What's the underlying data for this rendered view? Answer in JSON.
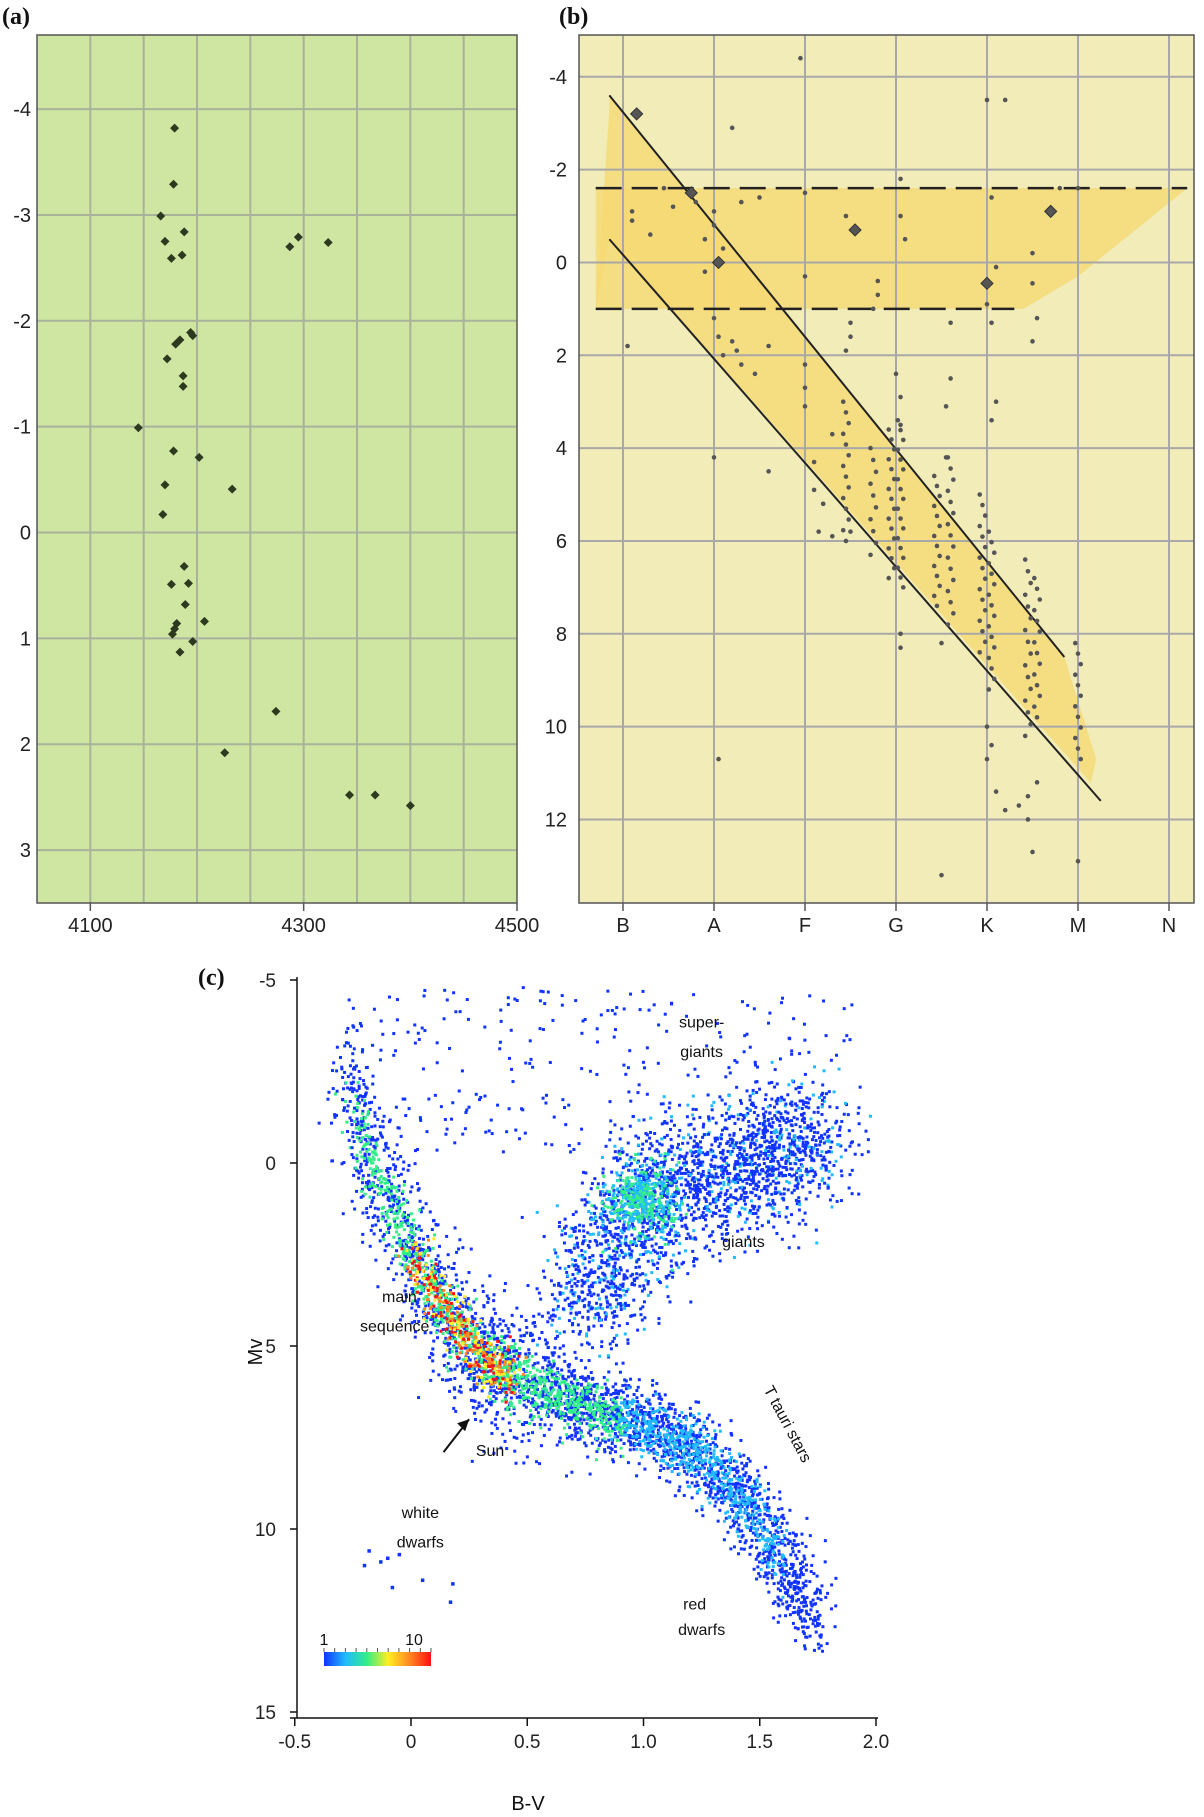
{
  "chart_data": [
    {
      "panel_label": "(a)",
      "type": "scatter",
      "xlim": [
        4050,
        4500
      ],
      "ylim": [
        -4.7,
        3.5
      ],
      "y_inverted": true,
      "grid": true,
      "background": "#cfe6a3",
      "grid_color": "#a9b29a",
      "point_color": "#2e3a1f",
      "xticks": [
        "4100",
        "4300",
        "4500"
      ],
      "xtick_values": [
        4100,
        4300,
        4500
      ],
      "yticks": [
        "-4",
        "-3",
        "-2",
        "-1",
        "0",
        "1",
        "2",
        "3"
      ],
      "ytick_values": [
        -4,
        -3,
        -2,
        -1,
        0,
        1,
        2,
        3
      ],
      "points": [
        [
          4179,
          -3.82
        ],
        [
          4178,
          -3.29
        ],
        [
          4166,
          -2.99
        ],
        [
          4170,
          -2.75
        ],
        [
          4176,
          -2.59
        ],
        [
          4186,
          -2.62
        ],
        [
          4188,
          -2.84
        ],
        [
          4287,
          -2.7
        ],
        [
          4295,
          -2.79
        ],
        [
          4323,
          -2.74
        ],
        [
          4194,
          -1.89
        ],
        [
          4196,
          -1.86
        ],
        [
          4184,
          -1.82
        ],
        [
          4180,
          -1.78
        ],
        [
          4172,
          -1.64
        ],
        [
          4187,
          -1.48
        ],
        [
          4187,
          -1.38
        ],
        [
          4145,
          -0.99
        ],
        [
          4178,
          -0.77
        ],
        [
          4202,
          -0.71
        ],
        [
          4170,
          -0.45
        ],
        [
          4233,
          -0.41
        ],
        [
          4168,
          -0.17
        ],
        [
          4188,
          0.32
        ],
        [
          4176,
          0.49
        ],
        [
          4192,
          0.48
        ],
        [
          4189,
          0.68
        ],
        [
          4207,
          0.84
        ],
        [
          4181,
          0.86
        ],
        [
          4179,
          0.91
        ],
        [
          4177,
          0.96
        ],
        [
          4196,
          1.03
        ],
        [
          4184,
          1.13
        ],
        [
          4274,
          1.69
        ],
        [
          4226,
          2.08
        ],
        [
          4343,
          2.48
        ],
        [
          4367,
          2.48
        ],
        [
          4400,
          2.58
        ]
      ]
    },
    {
      "panel_label": "(b)",
      "type": "scatter",
      "ylim": [
        -4.9,
        13.8
      ],
      "y_inverted": true,
      "grid": true,
      "background": "#f2ecb8",
      "band_color": "#f6d870",
      "grid_color": "#a8a8a8",
      "point_color": "#555555",
      "xticks": [
        "B",
        "A",
        "F",
        "G",
        "K",
        "M",
        "N"
      ],
      "yticks": [
        "-4",
        "-2",
        "0",
        "2",
        "4",
        "6",
        "8",
        "10",
        "12"
      ],
      "ytick_values": [
        -4,
        -2,
        0,
        2,
        4,
        6,
        8,
        10,
        12
      ],
      "x_range_index": [
        -0.35,
        6.35
      ],
      "giant_band_mag": [
        -1.6,
        1.0
      ],
      "main_sequence_lines": [
        {
          "x": [
            -0.15,
            4.85
          ],
          "y": [
            -3.6,
            8.5
          ]
        },
        {
          "x": [
            -0.15,
            5.25
          ],
          "y": [
            -0.5,
            11.6
          ]
        }
      ],
      "large_points": [
        [
          0.15,
          -3.2
        ],
        [
          0.75,
          -1.5
        ],
        [
          1.05,
          0.0
        ],
        [
          2.55,
          -0.7
        ],
        [
          4.0,
          0.45
        ],
        [
          4.7,
          -1.1
        ]
      ],
      "points": [
        [
          0.05,
          1.8
        ],
        [
          0.1,
          -0.9
        ],
        [
          0.1,
          -1.1
        ],
        [
          0.3,
          -0.6
        ],
        [
          0.45,
          -1.6
        ],
        [
          0.55,
          -1.2
        ],
        [
          0.8,
          -1.3
        ],
        [
          0.9,
          -0.5
        ],
        [
          0.9,
          0.2
        ],
        [
          1.0,
          -0.8
        ],
        [
          1.0,
          -1.1
        ],
        [
          1.1,
          -0.3
        ],
        [
          1.2,
          -2.9
        ],
        [
          1.3,
          -1.3
        ],
        [
          1.5,
          -1.4
        ],
        [
          1.0,
          1.2
        ],
        [
          1.05,
          1.6
        ],
        [
          1.1,
          2.0
        ],
        [
          1.2,
          1.7
        ],
        [
          1.3,
          2.2
        ],
        [
          1.25,
          1.9
        ],
        [
          1.45,
          2.4
        ],
        [
          1.6,
          1.8
        ],
        [
          1.0,
          4.2
        ],
        [
          1.05,
          10.7
        ],
        [
          1.6,
          4.5
        ],
        [
          1.95,
          -4.4
        ],
        [
          2.0,
          -1.5
        ],
        [
          2.0,
          0.3
        ],
        [
          2.0,
          2.2
        ],
        [
          2.0,
          2.7
        ],
        [
          2.0,
          3.1
        ],
        [
          2.1,
          4.3
        ],
        [
          2.2,
          5.2
        ],
        [
          2.15,
          5.8
        ],
        [
          2.3,
          3.7
        ],
        [
          2.5,
          1.3
        ],
        [
          2.5,
          1.6
        ],
        [
          2.45,
          1.9
        ],
        [
          2.45,
          -1.0
        ],
        [
          2.8,
          0.4
        ],
        [
          2.8,
          0.7
        ],
        [
          2.75,
          1.0
        ],
        [
          3.05,
          -1.8
        ],
        [
          3.05,
          -1.0
        ],
        [
          3.1,
          -0.5
        ],
        [
          3.0,
          2.4
        ],
        [
          3.05,
          2.9
        ],
        [
          3.05,
          3.5
        ],
        [
          3.6,
          1.3
        ],
        [
          3.6,
          2.5
        ],
        [
          3.55,
          3.1
        ],
        [
          3.55,
          4.2
        ],
        [
          3.5,
          8.2
        ],
        [
          3.5,
          13.2
        ],
        [
          4.0,
          -3.5
        ],
        [
          4.05,
          -1.4
        ],
        [
          4.1,
          0.1
        ],
        [
          4.2,
          -3.5
        ],
        [
          4.0,
          0.9
        ],
        [
          4.05,
          1.3
        ],
        [
          4.1,
          3.0
        ],
        [
          4.05,
          3.4
        ],
        [
          4.5,
          0.45
        ],
        [
          4.5,
          -0.2
        ],
        [
          4.55,
          1.2
        ],
        [
          4.5,
          1.7
        ],
        [
          4.8,
          -1.6
        ],
        [
          5.0,
          -1.6
        ],
        [
          5.0,
          12.9
        ],
        [
          3.05,
          8.0
        ],
        [
          3.05,
          8.3
        ],
        [
          2.5,
          5.8
        ],
        [
          2.3,
          5.9
        ],
        [
          2.1,
          4.9
        ],
        [
          4.1,
          11.4
        ],
        [
          4.2,
          11.8
        ],
        [
          4.35,
          11.7
        ],
        [
          4.45,
          11.5
        ],
        [
          4.45,
          12.0
        ],
        [
          4.5,
          12.7
        ],
        [
          4.55,
          11.2
        ],
        [
          4.0,
          10.0
        ],
        [
          4.0,
          10.7
        ],
        [
          4.05,
          10.4
        ]
      ],
      "ms_columns": [
        {
          "x": 2.45,
          "y0": 3.0,
          "y1": 6.0,
          "n": 14
        },
        {
          "x": 2.75,
          "y0": 4.0,
          "y1": 6.3,
          "n": 10
        },
        {
          "x": 2.95,
          "y0": 3.6,
          "y1": 6.8,
          "n": 16
        },
        {
          "x": 3.05,
          "y0": 3.4,
          "y1": 7.0,
          "n": 18
        },
        {
          "x": 3.45,
          "y0": 4.6,
          "y1": 7.4,
          "n": 14
        },
        {
          "x": 3.6,
          "y0": 4.2,
          "y1": 7.8,
          "n": 16
        },
        {
          "x": 3.95,
          "y0": 5.0,
          "y1": 8.4,
          "n": 16
        },
        {
          "x": 4.05,
          "y0": 5.8,
          "y1": 9.2,
          "n": 16
        },
        {
          "x": 4.45,
          "y0": 6.4,
          "y1": 10.2,
          "n": 16
        },
        {
          "x": 4.55,
          "y0": 6.8,
          "y1": 9.8,
          "n": 14
        },
        {
          "x": 5.0,
          "y0": 8.2,
          "y1": 10.7,
          "n": 12
        }
      ]
    },
    {
      "panel_label": "(c)",
      "type": "scatter",
      "xlabel": "B-V",
      "ylabel": "Mv",
      "xlim": [
        -0.5,
        2.0
      ],
      "ylim": [
        -5,
        15
      ],
      "y_inverted": true,
      "grid": false,
      "xticks": [
        "-0.5",
        "0",
        "0.5",
        "1.0",
        "1.5",
        "2.0"
      ],
      "xtick_values": [
        -0.5,
        0,
        0.5,
        1.0,
        1.5,
        2.0
      ],
      "yticks": [
        "-5",
        "0",
        "5",
        "10",
        "15"
      ],
      "ytick_values": [
        -5,
        0,
        5,
        10,
        15
      ],
      "colorbar": {
        "min_label": "1",
        "max_label": "10",
        "colors": [
          "#1133ff",
          "#22bbff",
          "#33ee88",
          "#ffee22",
          "#ff8822",
          "#ff1111"
        ]
      },
      "annotations": [
        {
          "text": "super-",
          "x": 1.25,
          "y": -3.7
        },
        {
          "text": "giants",
          "x": 1.25,
          "y": -2.9
        },
        {
          "text": "giants",
          "x": 1.43,
          "y": 2.3
        },
        {
          "text": "main",
          "x": -0.05,
          "y": 3.8
        },
        {
          "text": "sequence",
          "x": -0.07,
          "y": 4.6
        },
        {
          "text": "T tauri stars",
          "x": 1.6,
          "y": 7.2,
          "rotate": 62
        },
        {
          "text": "Sun",
          "x": 0.34,
          "y": 8.0
        },
        {
          "text": "white",
          "x": 0.04,
          "y": 9.7
        },
        {
          "text": "dwarfs",
          "x": 0.04,
          "y": 10.5
        },
        {
          "text": "red",
          "x": 1.22,
          "y": 12.2
        },
        {
          "text": "dwarfs",
          "x": 1.25,
          "y": 12.9
        }
      ],
      "sun_arrow": {
        "from": [
          0.14,
          7.9
        ],
        "to": [
          0.25,
          7.0
        ]
      },
      "density_ridge": [
        [
          -0.28,
          -3.0
        ],
        [
          -0.22,
          -1.0
        ],
        [
          -0.15,
          0.4
        ],
        [
          -0.05,
          1.6
        ],
        [
          0.0,
          2.5
        ],
        [
          0.1,
          3.5
        ],
        [
          0.2,
          4.5
        ],
        [
          0.3,
          5.3
        ],
        [
          0.45,
          5.9
        ],
        [
          0.6,
          6.3
        ],
        [
          0.8,
          6.7
        ],
        [
          1.0,
          7.2
        ],
        [
          1.2,
          7.8
        ],
        [
          1.35,
          8.6
        ],
        [
          1.5,
          9.8
        ],
        [
          1.55,
          10.5
        ],
        [
          1.65,
          11.5
        ],
        [
          1.75,
          12.8
        ]
      ],
      "giant_clump": [
        0.99,
        1.0
      ],
      "giant_branch": [
        [
          0.75,
          4.0
        ],
        [
          0.85,
          2.5
        ],
        [
          1.0,
          1.0
        ],
        [
          1.2,
          0.5
        ],
        [
          1.4,
          0.2
        ],
        [
          1.6,
          -0.3
        ],
        [
          1.75,
          -0.7
        ]
      ],
      "white_dwarfs": [
        [
          -0.18,
          10.6
        ],
        [
          -0.13,
          10.9
        ],
        [
          -0.1,
          10.8
        ],
        [
          -0.05,
          10.7
        ],
        [
          -0.08,
          11.6
        ],
        [
          0.05,
          11.4
        ],
        [
          0.18,
          11.5
        ],
        [
          0.17,
          12.0
        ],
        [
          -0.2,
          11.0
        ]
      ]
    }
  ]
}
